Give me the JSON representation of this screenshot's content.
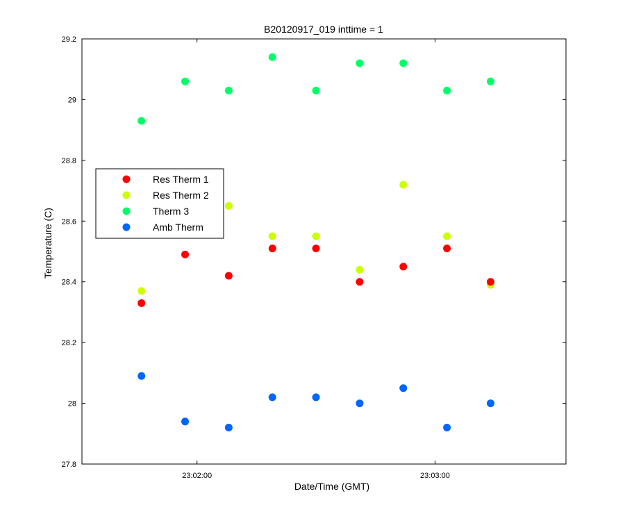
{
  "chart_data": {
    "type": "scatter",
    "title": "B20120917_019 inttime = 1",
    "xlabel": "Date/Time (GMT)",
    "ylabel": "Temperature (C)",
    "xlim": [
      "23:01:31",
      "23:03:33"
    ],
    "ylim": [
      27.8,
      29.2
    ],
    "x_ticks": [
      "23:02:00",
      "23:03:00"
    ],
    "y_ticks": [
      "27.8",
      "28",
      "28.2",
      "28.4",
      "28.6",
      "28.8",
      "29",
      "29.2"
    ],
    "grid": false,
    "legend_position": "left",
    "x": [
      "23:01:46",
      "23:01:57",
      "23:02:08",
      "23:02:19",
      "23:02:30",
      "23:02:41",
      "23:02:52",
      "23:03:03",
      "23:03:14"
    ],
    "series": [
      {
        "name": "Res Therm 1",
        "color": "#ff0000",
        "values": [
          28.33,
          28.49,
          28.42,
          28.51,
          28.51,
          28.4,
          28.45,
          28.51,
          28.4
        ]
      },
      {
        "name": "Res Therm 2",
        "color": "#ccff00",
        "values": [
          28.37,
          null,
          28.65,
          28.55,
          28.55,
          28.44,
          28.72,
          28.55,
          28.39
        ]
      },
      {
        "name": "Therm 3",
        "color": "#00ff66",
        "values": [
          28.93,
          29.06,
          29.03,
          29.14,
          29.03,
          29.12,
          29.12,
          29.03,
          29.06
        ]
      },
      {
        "name": "Amb Therm",
        "color": "#0066ff",
        "values": [
          28.09,
          27.94,
          27.92,
          28.02,
          28.02,
          28.0,
          28.05,
          27.92,
          28.0
        ]
      }
    ]
  }
}
